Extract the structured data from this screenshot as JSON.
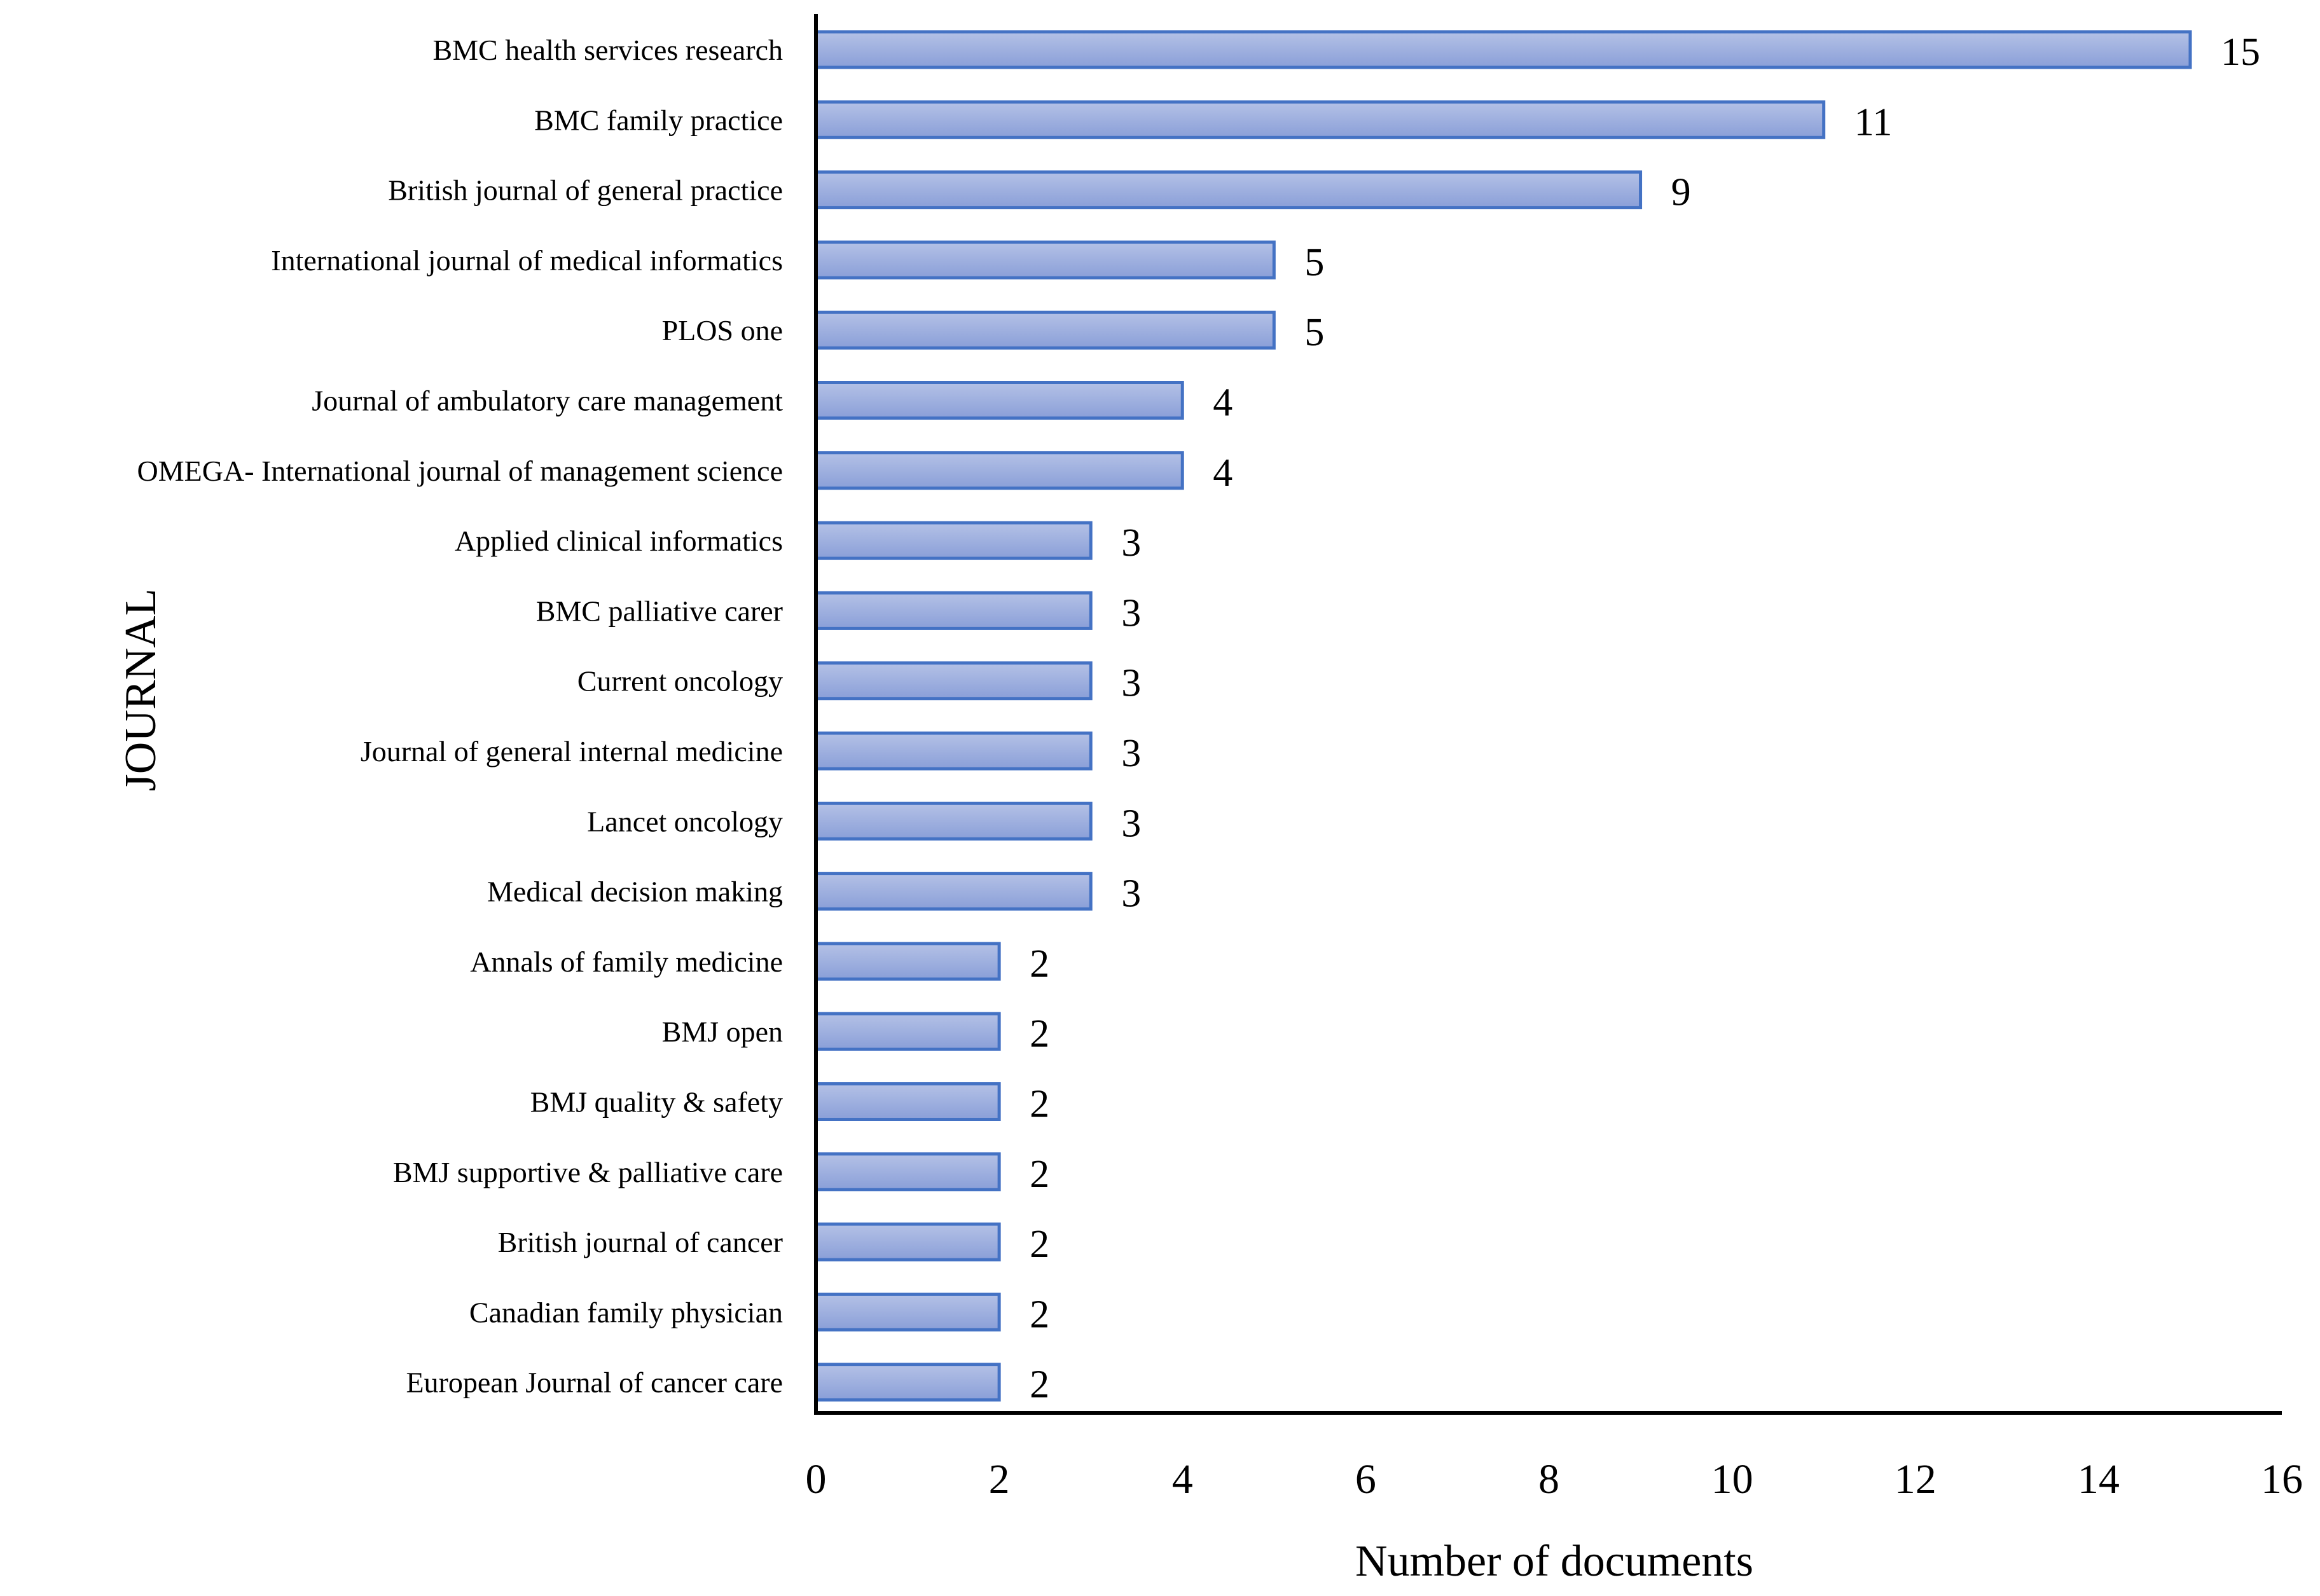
{
  "chart_data": {
    "type": "bar",
    "orientation": "horizontal",
    "title": "",
    "xlabel": "Number of documents",
    "ylabel": "JOURNAL",
    "xlim": [
      0,
      16
    ],
    "xticks": [
      0,
      2,
      4,
      6,
      8,
      10,
      12,
      14,
      16
    ],
    "xtick_labels": [
      "0",
      "2",
      "4",
      "6",
      "8",
      "10",
      "12",
      "14",
      "16"
    ],
    "grid": false,
    "legend": "none",
    "categories": [
      "BMC health services research",
      "BMC family practice",
      "British journal of general practice",
      "International journal of medical informatics",
      "PLOS one",
      "Journal of ambulatory care management",
      "OMEGA- International journal of management science",
      "Applied clinical informatics",
      "BMC palliative carer",
      "Current oncology",
      "Journal of general internal medicine",
      "Lancet oncology",
      "Medical decision making",
      "Annals of family medicine",
      "BMJ open",
      "BMJ quality & safety",
      "BMJ supportive & palliative care",
      "British journal of cancer",
      "Canadian family physician",
      "European Journal of cancer care"
    ],
    "values": [
      15,
      11,
      9,
      5,
      5,
      4,
      4,
      3,
      3,
      3,
      3,
      3,
      3,
      2,
      2,
      2,
      2,
      2,
      2,
      2
    ],
    "value_labels": [
      "15",
      "11",
      "9",
      "5",
      "5",
      "4",
      "4",
      "3",
      "3",
      "3",
      "3",
      "3",
      "3",
      "2",
      "2",
      "2",
      "2",
      "2",
      "2",
      "2"
    ],
    "colors": {
      "bar_fill_top": "#b4c1e6",
      "bar_fill_bottom": "#8a9fd8",
      "bar_stroke": "#4472c4",
      "axis": "#000000"
    }
  }
}
